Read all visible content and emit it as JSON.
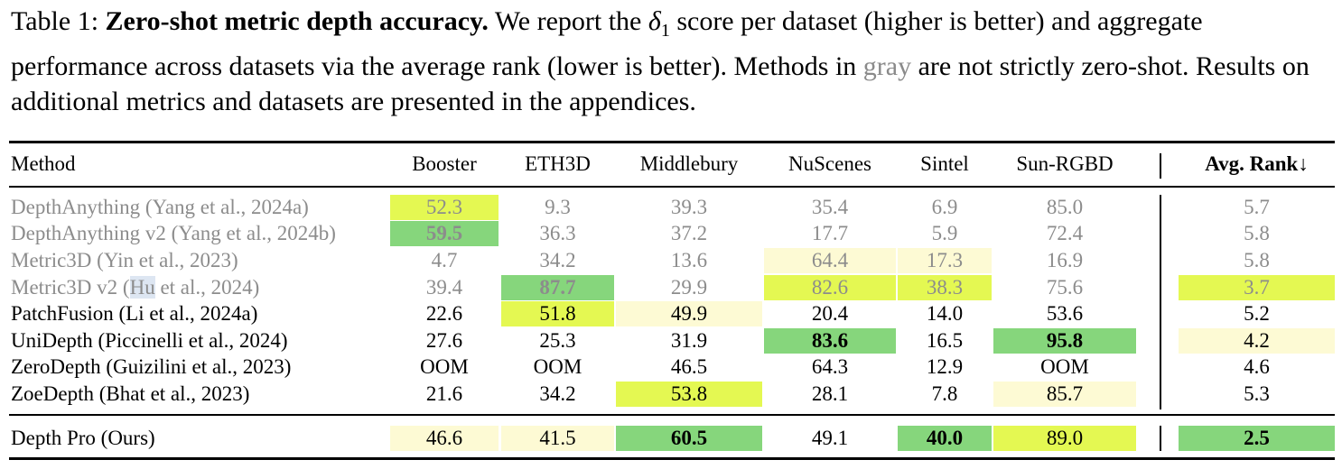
{
  "caption": {
    "label": "Table 1:",
    "title": "Zero-shot metric depth accuracy.",
    "text_a": "We report the",
    "delta_symbol": "δ",
    "delta_sub": "1",
    "text_b": "score per dataset (higher is better) and aggregate performance across datasets via the average rank (lower is better). Methods in",
    "gray_word": "gray",
    "text_c": "are not strictly zero-shot. Results on additional metrics and datasets are presented in the appendices."
  },
  "table": {
    "headers": [
      "Method",
      "Booster",
      "ETH3D",
      "Middlebury",
      "NuScenes",
      "Sintel",
      "Sun-RGBD",
      "Avg. Rank↓"
    ],
    "colors": {
      "green": "#86d67c",
      "lime": "#e4f852",
      "cream": "#fdfad4",
      "gray_text": "#8c8c8c"
    },
    "rows": [
      {
        "method": "DepthAnything (Yang et al., 2024a)",
        "gray": true,
        "values": [
          "52.3",
          "9.3",
          "39.3",
          "35.4",
          "6.9",
          "85.0",
          "5.7"
        ],
        "highlight": [
          "lime",
          "",
          "",
          "",
          "",
          "",
          ""
        ],
        "bold": [
          false,
          false,
          false,
          false,
          false,
          false,
          false
        ]
      },
      {
        "method": "DepthAnything v2  (Yang et al., 2024b)",
        "gray": true,
        "values": [
          "59.5",
          "36.3",
          "37.2",
          "17.7",
          "5.9",
          "72.4",
          "5.8"
        ],
        "highlight": [
          "green",
          "",
          "",
          "",
          "",
          "",
          ""
        ],
        "bold": [
          true,
          false,
          false,
          false,
          false,
          false,
          false
        ]
      },
      {
        "method": "Metric3D  (Yin et al., 2023)",
        "gray": true,
        "values": [
          "4.7",
          "34.2",
          "13.6",
          "64.4",
          "17.3",
          "16.9",
          "5.8"
        ],
        "highlight": [
          "",
          "",
          "",
          "cream",
          "cream",
          "",
          ""
        ],
        "bold": [
          false,
          false,
          false,
          false,
          false,
          false,
          false
        ]
      },
      {
        "method_pre": "Metric3D v2  (",
        "method_hu": "Hu",
        "method_post": " et al., 2024)",
        "gray": true,
        "values": [
          "39.4",
          "87.7",
          "29.9",
          "82.6",
          "38.3",
          "75.6",
          "3.7"
        ],
        "highlight": [
          "",
          "green",
          "",
          "lime",
          "lime",
          "",
          "lime"
        ],
        "bold": [
          false,
          true,
          false,
          false,
          false,
          false,
          false
        ]
      },
      {
        "method": "PatchFusion  (Li et al., 2024a)",
        "gray": false,
        "values": [
          "22.6",
          "51.8",
          "49.9",
          "20.4",
          "14.0",
          "53.6",
          "5.2"
        ],
        "highlight": [
          "",
          "lime",
          "cream",
          "",
          "",
          "",
          ""
        ],
        "bold": [
          false,
          false,
          false,
          false,
          false,
          false,
          false
        ]
      },
      {
        "method": "UniDepth  (Piccinelli et al., 2024)",
        "gray": false,
        "values": [
          "27.6",
          "25.3",
          "31.9",
          "83.6",
          "16.5",
          "95.8",
          "4.2"
        ],
        "highlight": [
          "",
          "",
          "",
          "green",
          "",
          "green",
          "cream"
        ],
        "bold": [
          false,
          false,
          false,
          true,
          false,
          true,
          false
        ]
      },
      {
        "method": "ZeroDepth  (Guizilini et al., 2023)",
        "gray": false,
        "values": [
          "OOM",
          "OOM",
          "46.5",
          "64.3",
          "12.9",
          "OOM",
          "4.6"
        ],
        "highlight": [
          "",
          "",
          "",
          "",
          "",
          "",
          ""
        ],
        "bold": [
          false,
          false,
          false,
          false,
          false,
          false,
          false
        ]
      },
      {
        "method": "ZoeDepth  (Bhat et al., 2023)",
        "gray": false,
        "values": [
          "21.6",
          "34.2",
          "53.8",
          "28.1",
          "7.8",
          "85.7",
          "5.3"
        ],
        "highlight": [
          "",
          "",
          "lime",
          "",
          "",
          "cream",
          ""
        ],
        "bold": [
          false,
          false,
          false,
          false,
          false,
          false,
          false
        ]
      },
      {
        "method": "Depth Pro (Ours)",
        "gray": false,
        "values": [
          "46.6",
          "41.5",
          "60.5",
          "49.1",
          "40.0",
          "89.0",
          "2.5"
        ],
        "highlight": [
          "cream",
          "cream",
          "green",
          "",
          "green",
          "lime",
          "green"
        ],
        "bold": [
          false,
          false,
          true,
          false,
          true,
          false,
          true
        ]
      }
    ]
  }
}
